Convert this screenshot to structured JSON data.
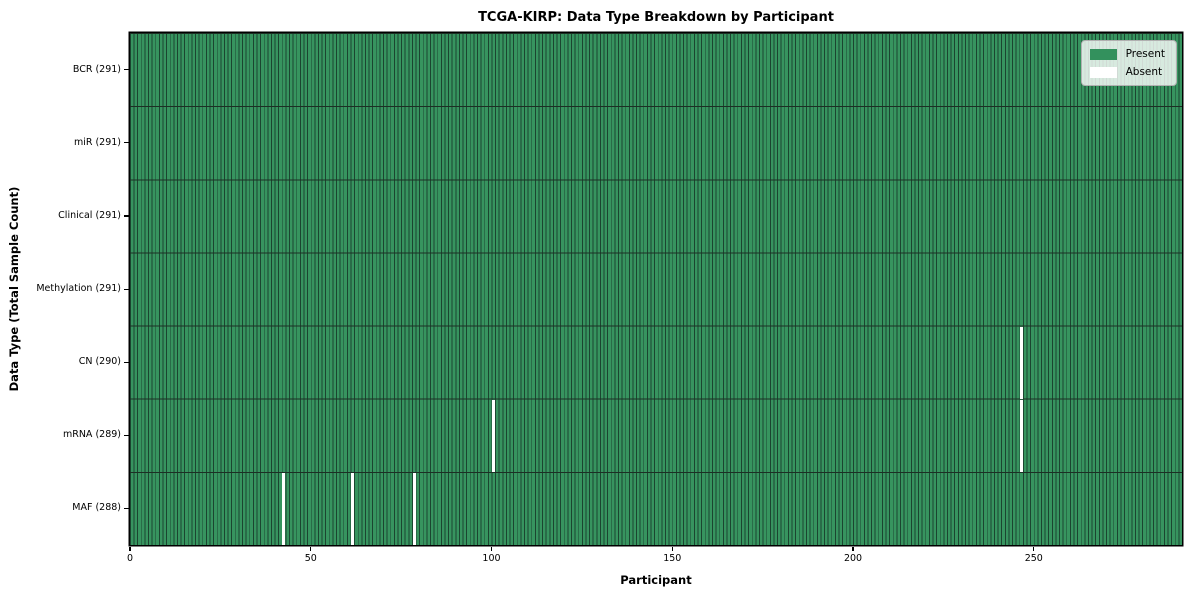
{
  "chart_data": {
    "type": "heatmap",
    "title": "TCGA-KIRP: Data Type Breakdown by Participant",
    "xlabel": "Participant",
    "ylabel": "Data Type (Total Sample Count)",
    "n_participants": 291,
    "x_ticks": [
      0,
      50,
      100,
      150,
      200,
      250
    ],
    "rows": [
      {
        "label": "BCR (291)",
        "data_type": "BCR",
        "total_samples": 291,
        "absent_participants": []
      },
      {
        "label": "miR (291)",
        "data_type": "miR",
        "total_samples": 291,
        "absent_participants": []
      },
      {
        "label": "Clinical (291)",
        "data_type": "Clinical",
        "total_samples": 291,
        "absent_participants": []
      },
      {
        "label": "Methylation (291)",
        "data_type": "Methylation",
        "total_samples": 291,
        "absent_participants": []
      },
      {
        "label": "CN (290)",
        "data_type": "CN",
        "total_samples": 290,
        "absent_participants": [
          246
        ]
      },
      {
        "label": "mRNA (289)",
        "data_type": "mRNA",
        "total_samples": 289,
        "absent_participants": [
          100,
          246
        ]
      },
      {
        "label": "MAF (288)",
        "data_type": "MAF",
        "total_samples": 288,
        "absent_participants": [
          42,
          61,
          78
        ]
      }
    ],
    "legend": {
      "position": "upper right",
      "items": [
        {
          "label": "Present",
          "color": "#33915d"
        },
        {
          "label": "Absent",
          "color": "#ffffff"
        }
      ]
    },
    "colors": {
      "present": "#37945f",
      "absent": "#ffffff",
      "bar_edge": "#1b4530",
      "row_divider": "#1c2f24",
      "axis": "#000000"
    },
    "xlim": [
      0,
      291
    ],
    "grid": false
  }
}
